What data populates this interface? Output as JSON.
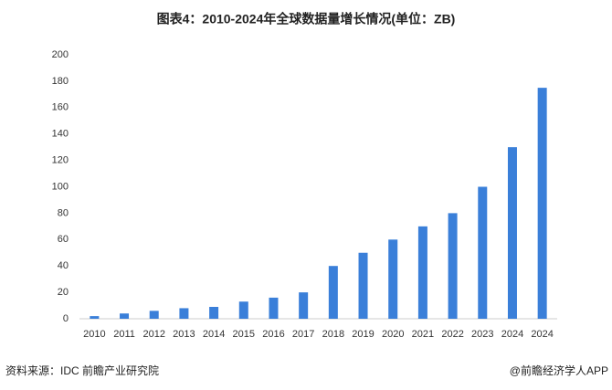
{
  "chart_data": {
    "type": "bar",
    "title": "图表4：2010-2024年全球数据量增长情况(单位：ZB)",
    "categories": [
      "2010",
      "2011",
      "2012",
      "2013",
      "2014",
      "2015",
      "2016",
      "2017",
      "2018",
      "2019",
      "2020",
      "2021",
      "2022",
      "2023",
      "2024",
      "2024"
    ],
    "values": [
      2,
      4,
      6,
      8,
      9,
      13,
      16,
      20,
      40,
      50,
      60,
      70,
      80,
      100,
      130,
      175
    ],
    "color": "#3a7fd9",
    "ylim": [
      0,
      200
    ],
    "yticks": [
      0,
      20,
      40,
      60,
      80,
      100,
      120,
      140,
      160,
      180,
      200
    ],
    "grid": false
  },
  "footer": {
    "source": "资料来源：IDC 前瞻产业研究院",
    "brand": "@前瞻经济学人APP"
  }
}
